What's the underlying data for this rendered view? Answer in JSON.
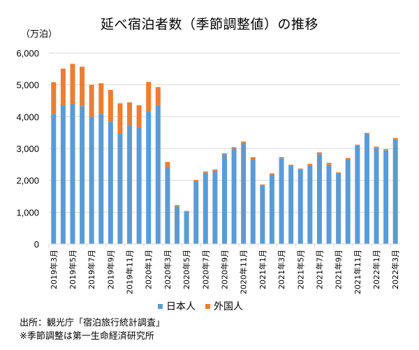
{
  "chart_data": {
    "type": "bar",
    "stacked": true,
    "title": "延べ宿泊者数（季節調整値）の推移",
    "ylabel": "（万泊）",
    "xlabel": "",
    "ylim": [
      0,
      6000
    ],
    "yticks": [
      0,
      1000,
      2000,
      3000,
      4000,
      5000,
      6000
    ],
    "ytick_labels": [
      "0",
      "1,000",
      "2,000",
      "3,000",
      "4,000",
      "5,000",
      "6,000"
    ],
    "grid": true,
    "legend_position": "bottom",
    "categories": [
      "2019年3月",
      "2019年4月",
      "2019年5月",
      "2019年6月",
      "2019年7月",
      "2019年8月",
      "2019年9月",
      "2019年10月",
      "2019年11月",
      "2019年12月",
      "2020年1月",
      "2020年2月",
      "2020年3月",
      "2020年4月",
      "2020年5月",
      "2020年6月",
      "2020年7月",
      "2020年8月",
      "2020年9月",
      "2020年10月",
      "2020年11月",
      "2020年12月",
      "2021年1月",
      "2021年2月",
      "2021年3月",
      "2021年4月",
      "2021年5月",
      "2021年6月",
      "2021年7月",
      "2021年8月",
      "2021年9月",
      "2021年10月",
      "2021年11月",
      "2021年12月",
      "2022年1月",
      "2022年2月",
      "2022年3月"
    ],
    "xtick_labels": [
      "2019年3月",
      "2019年5月",
      "2019年7月",
      "2019年9月",
      "2019年11月",
      "2020年1月",
      "2020年3月",
      "2020年5月",
      "2020年7月",
      "2020年9月",
      "2020年11月",
      "2021年1月",
      "2021年3月",
      "2021年5月",
      "2021年7月",
      "2021年9月",
      "2021年11月",
      "2022年1月",
      "2022年3月"
    ],
    "series": [
      {
        "name": "日本人",
        "color": "#5b9bd5",
        "values": [
          4090,
          4360,
          4420,
          4330,
          4000,
          4090,
          3850,
          3460,
          3700,
          3670,
          4180,
          4360,
          2420,
          1180,
          1010,
          1970,
          2240,
          2300,
          2820,
          3000,
          3180,
          2670,
          1820,
          2180,
          2690,
          2450,
          2340,
          2480,
          2820,
          2490,
          2210,
          2660,
          3090,
          3450,
          3030,
          2940,
          3300
        ]
      },
      {
        "name": "外国人",
        "color": "#ed7d31",
        "values": [
          990,
          1150,
          1240,
          1240,
          1000,
          960,
          990,
          960,
          750,
          690,
          910,
          570,
          160,
          40,
          30,
          40,
          40,
          40,
          30,
          40,
          40,
          60,
          50,
          40,
          40,
          40,
          30,
          40,
          60,
          60,
          40,
          40,
          30,
          40,
          30,
          40,
          30
        ]
      }
    ]
  },
  "footer": {
    "source": "出所：観光庁「宿泊旅行統計調査」",
    "note": "※季節調整は第一生命経済研究所"
  }
}
